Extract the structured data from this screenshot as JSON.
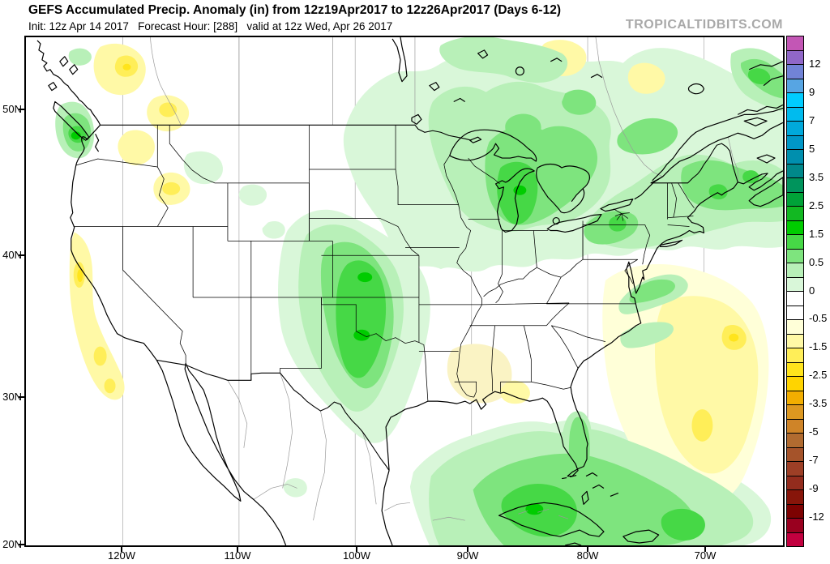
{
  "header": {
    "title": "GEFS Accumulated Precip. Anomaly (in) from 12z19Apr2017 to 12z26Apr2017 (Days 6-12)",
    "init_line": "Init: 12z Apr 14 2017   Forecast Hour: [288]   valid at 12z Wed, Apr 26 2017",
    "watermark": "TROPICALTIDBITS.COM"
  },
  "map": {
    "lat_labels": [
      "50N",
      "40N",
      "30N",
      "20N"
    ],
    "lon_labels": [
      "120W",
      "110W",
      "100W",
      "90W",
      "80W",
      "70W"
    ]
  },
  "colorbar": {
    "tick_labels": [
      "12",
      "9",
      "7",
      "5",
      "3.5",
      "2.5",
      "1.5",
      "0.5",
      "0",
      "-0.5",
      "-1.5",
      "-2.5",
      "-3.5",
      "-5",
      "-7",
      "-9",
      "-12"
    ],
    "colors": [
      "#c356b5",
      "#9067c8",
      "#7183d7",
      "#57a5e3",
      "#00ccff",
      "#00bbee",
      "#00a9db",
      "#0097c7",
      "#008fae",
      "#00888a",
      "#00945c",
      "#00a238",
      "#12b822",
      "#00cc00",
      "#46d846",
      "#7ee47e",
      "#b8f0b8",
      "#d9f7d9",
      "#ffffff",
      "#ffffff",
      "#ffffd8",
      "#fff9a6",
      "#ffee58",
      "#ffe41c",
      "#ffd400",
      "#f2ae00",
      "#dd9820",
      "#cf8428",
      "#b16b30",
      "#a5532a",
      "#9d3f26",
      "#932c1d",
      "#87150a",
      "#7d0202",
      "#99001f",
      "#c2003f"
    ]
  },
  "chart_data": {
    "type": "heatmap",
    "title": "GEFS Accumulated Precip. Anomaly (in) from 12z19Apr2017 to 12z26Apr2017 (Days 6-12)",
    "subtitle": "Init: 12z Apr 14 2017   Forecast Hour: [288]   valid at 12z Wed, Apr 26 2017",
    "units": "in",
    "region": "CONUS / North America sector",
    "x_axis": {
      "label": "longitude",
      "ticks": [
        "120W",
        "110W",
        "100W",
        "90W",
        "80W",
        "70W"
      ]
    },
    "y_axis": {
      "label": "latitude",
      "ticks": [
        "50N",
        "40N",
        "30N",
        "20N"
      ]
    },
    "colorbar_tick_labels": [
      "12",
      "9",
      "7",
      "5",
      "3.5",
      "2.5",
      "1.5",
      "0.5",
      "0",
      "-0.5",
      "-1.5",
      "-2.5",
      "-3.5",
      "-5",
      "-7",
      "-9",
      "-12"
    ],
    "contour_levels_est": [
      -14,
      -12,
      -10,
      -9,
      -8,
      -7,
      -6,
      -5,
      -4,
      -3.5,
      -3,
      -2.5,
      -2,
      -1.5,
      -1,
      -0.5,
      -0.25,
      0,
      0.25,
      0.5,
      1,
      1.5,
      2,
      2.5,
      3,
      3.5,
      4,
      5,
      6,
      7,
      8,
      9,
      10,
      12,
      14
    ],
    "legend_position": "right",
    "features": [
      {
        "region": "Central/Southern Plains (KS, OK, N TX)",
        "anomaly_in": "+1 to +2.5"
      },
      {
        "region": "Upper Midwest, Great Lakes, Northeast US, SE Canada",
        "anomaly_in": "+0.25 to +2"
      },
      {
        "region": "Florida, Cuba, Bahamas, Gulf Stream waters",
        "anomaly_in": "+0.5 to +2.5"
      },
      {
        "region": "Pacific Northwest coast (WA / Vancouver Island)",
        "anomaly_in": "+0.5 to +2"
      },
      {
        "region": "California and Oregon coast",
        "anomaly_in": "-0.5 to -2"
      },
      {
        "region": "British Columbia interior / N Rockies / Idaho",
        "anomaly_in": "-0.5 to -1.5"
      },
      {
        "region": "Western Atlantic southeast of New England",
        "anomaly_in": "-0.5 to -2"
      },
      {
        "region": "Alabama / Florida panhandle",
        "anomaly_in": "-0.25 to -1"
      }
    ]
  }
}
